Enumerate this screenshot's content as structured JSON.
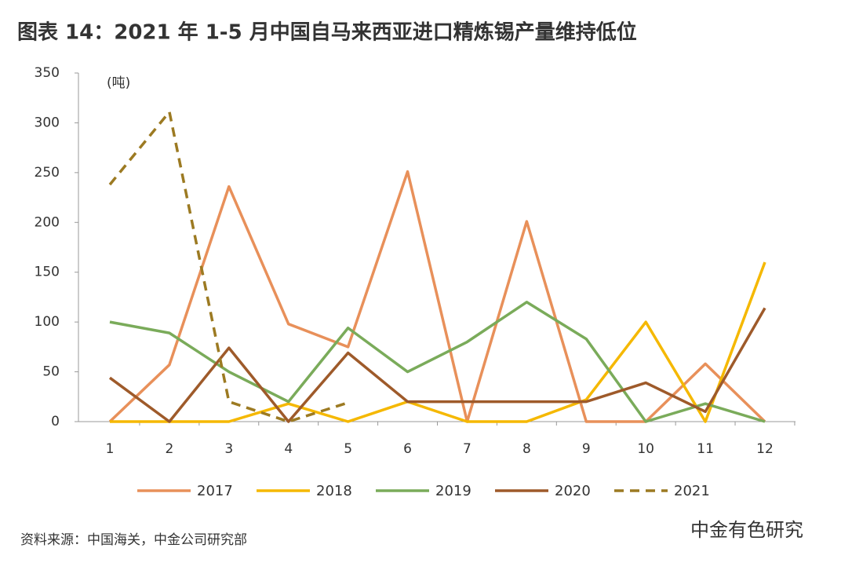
{
  "chart_data": {
    "type": "line",
    "title": "图表 14：2021 年 1-5 月中国自马来西亚进口精炼锡产量维持低位",
    "y_label": "(吨)",
    "categories": [
      "1",
      "2",
      "3",
      "4",
      "5",
      "6",
      "7",
      "8",
      "9",
      "10",
      "11",
      "12"
    ],
    "series": [
      {
        "name": "2017",
        "color": "#e8905a",
        "values": [
          0,
          57,
          236,
          98,
          75,
          251,
          0,
          201,
          0,
          0,
          58,
          0
        ]
      },
      {
        "name": "2018",
        "color": "#f5b800",
        "values": [
          0,
          0,
          0,
          18,
          0,
          20,
          0,
          0,
          22,
          100,
          0,
          160
        ]
      },
      {
        "name": "2019",
        "color": "#7aab5a",
        "values": [
          100,
          89,
          50,
          20,
          94,
          50,
          80,
          120,
          83,
          0,
          18,
          0
        ]
      },
      {
        "name": "2020",
        "color": "#9e5a2a",
        "values": [
          44,
          0,
          74,
          0,
          69,
          20,
          20,
          20,
          20,
          39,
          10,
          114
        ]
      },
      {
        "name": "2021",
        "color": "#9c7a22",
        "dashed": true,
        "values": [
          238,
          311,
          20,
          0,
          19,
          null,
          null,
          null,
          null,
          null,
          null,
          null
        ]
      }
    ],
    "ylim": [
      0,
      350
    ],
    "yticks": [
      0,
      50,
      100,
      150,
      200,
      250,
      300,
      350
    ],
    "source": "资料来源：中国海关，中金公司研究部",
    "watermark": "中金有色研究"
  }
}
